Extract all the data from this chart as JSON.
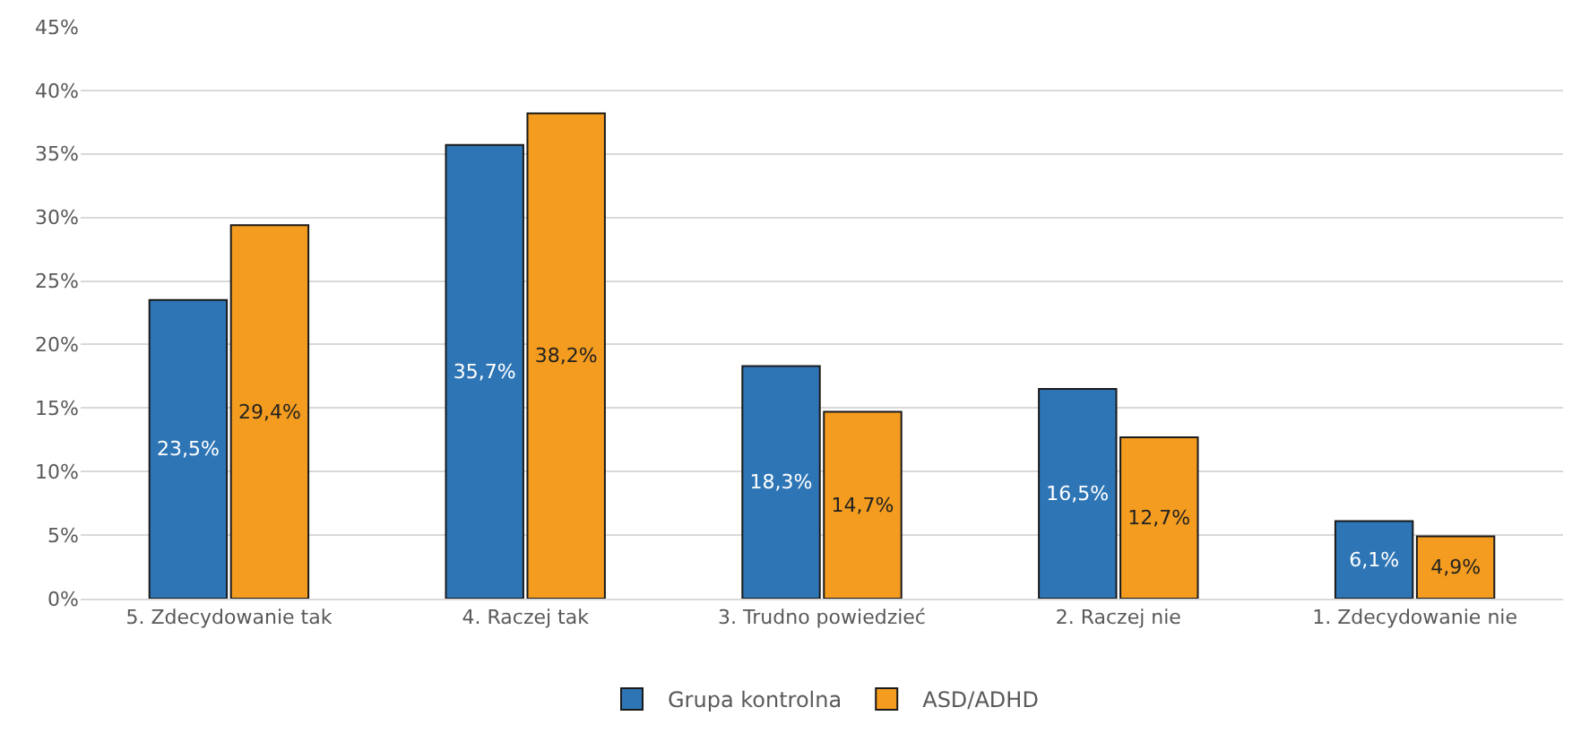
{
  "chart_data": {
    "type": "bar",
    "categories": [
      "5. Zdecydowanie tak",
      "4. Raczej tak",
      "3. Trudno powiedzieć",
      "2. Raczej nie",
      "1. Zdecydowanie nie"
    ],
    "series": [
      {
        "name": "Grupa kontrolna",
        "color": "#2e75b6",
        "values": [
          23.5,
          35.7,
          18.3,
          16.5,
          6.1
        ],
        "value_labels": [
          "23,5%",
          "35,7%",
          "18,3%",
          "16,5%",
          "6,1%"
        ]
      },
      {
        "name": "ASD/ADHD",
        "color": "#f39c1f",
        "values": [
          29.4,
          38.2,
          14.7,
          12.7,
          4.9
        ],
        "value_labels": [
          "29,4%",
          "38,2%",
          "14,7%",
          "12,7%",
          "4,9%"
        ]
      }
    ],
    "ylim": [
      0,
      45
    ],
    "yticks": [
      {
        "value": 0,
        "label": "0%"
      },
      {
        "value": 5,
        "label": "5%"
      },
      {
        "value": 10,
        "label": "10%"
      },
      {
        "value": 15,
        "label": "15%"
      },
      {
        "value": 20,
        "label": "20%"
      },
      {
        "value": 25,
        "label": "25%"
      },
      {
        "value": 30,
        "label": "30%"
      },
      {
        "value": 35,
        "label": "35%"
      },
      {
        "value": 40,
        "label": "40%"
      },
      {
        "value": 45,
        "label": "45%"
      }
    ],
    "grid": "y",
    "legend": "bottom"
  }
}
